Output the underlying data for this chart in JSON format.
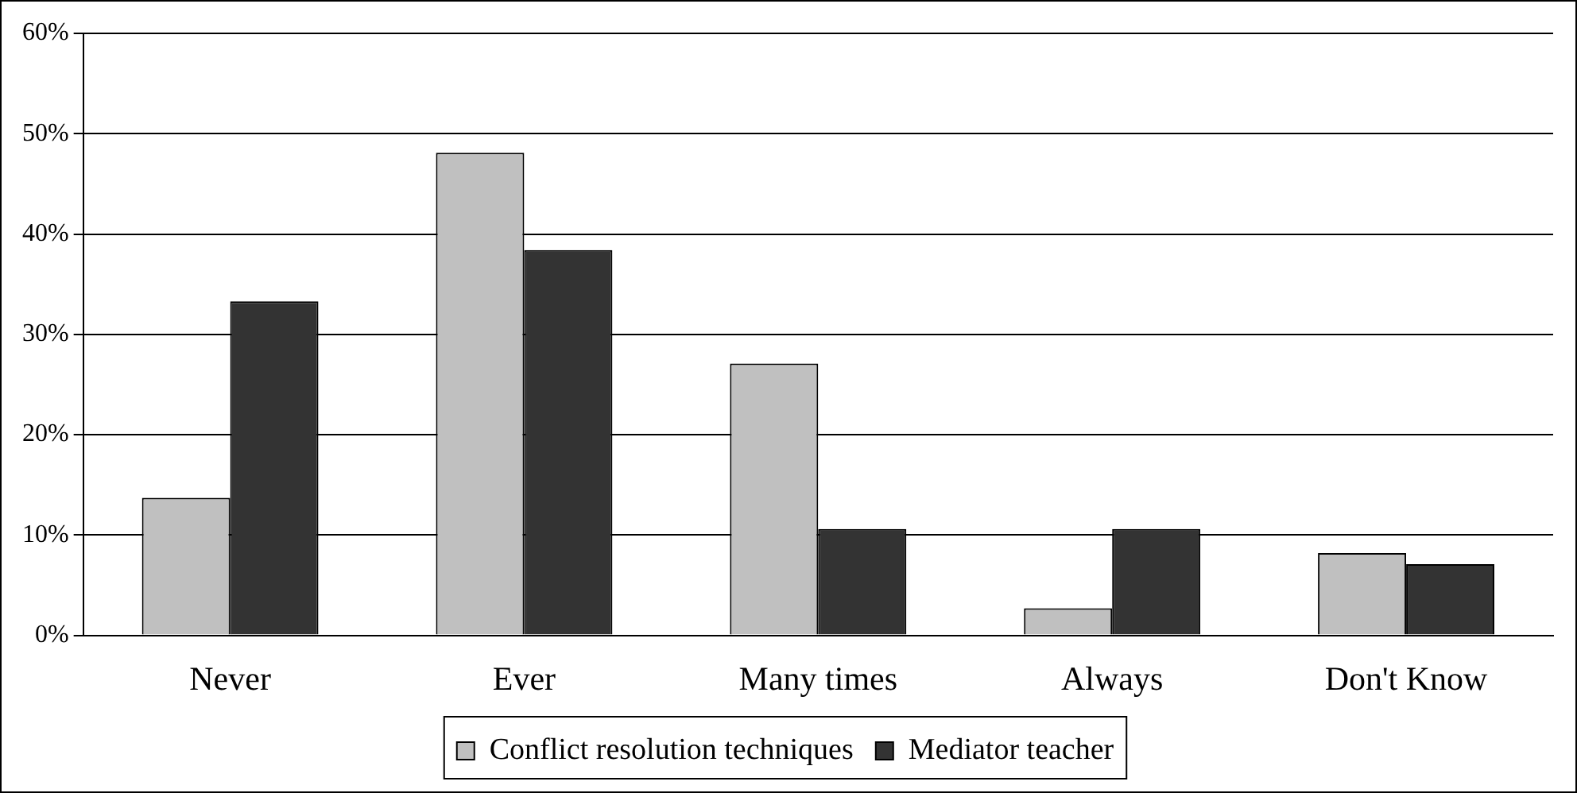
{
  "chart_data": {
    "type": "bar",
    "categories": [
      "Never",
      "Ever",
      "Many times",
      "Always",
      "Don't Know"
    ],
    "series": [
      {
        "name": "Conflict resolution techniques",
        "color": "#c0c0c0",
        "values": [
          13.7,
          48.1,
          27.1,
          2.7,
          8.2
        ]
      },
      {
        "name": "Mediator teacher",
        "color": "#333333",
        "values": [
          33.3,
          38.4,
          10.6,
          10.6,
          7.1
        ]
      }
    ],
    "ylim": [
      0,
      60
    ],
    "yticks": [
      {
        "value": 0,
        "label": "0%"
      },
      {
        "value": 10,
        "label": "10%"
      },
      {
        "value": 20,
        "label": "20%"
      },
      {
        "value": 30,
        "label": "30%"
      },
      {
        "value": 40,
        "label": "40%"
      },
      {
        "value": 50,
        "label": "50%"
      },
      {
        "value": 60,
        "label": "60%"
      }
    ],
    "grid": "y",
    "legend": "bottom"
  }
}
